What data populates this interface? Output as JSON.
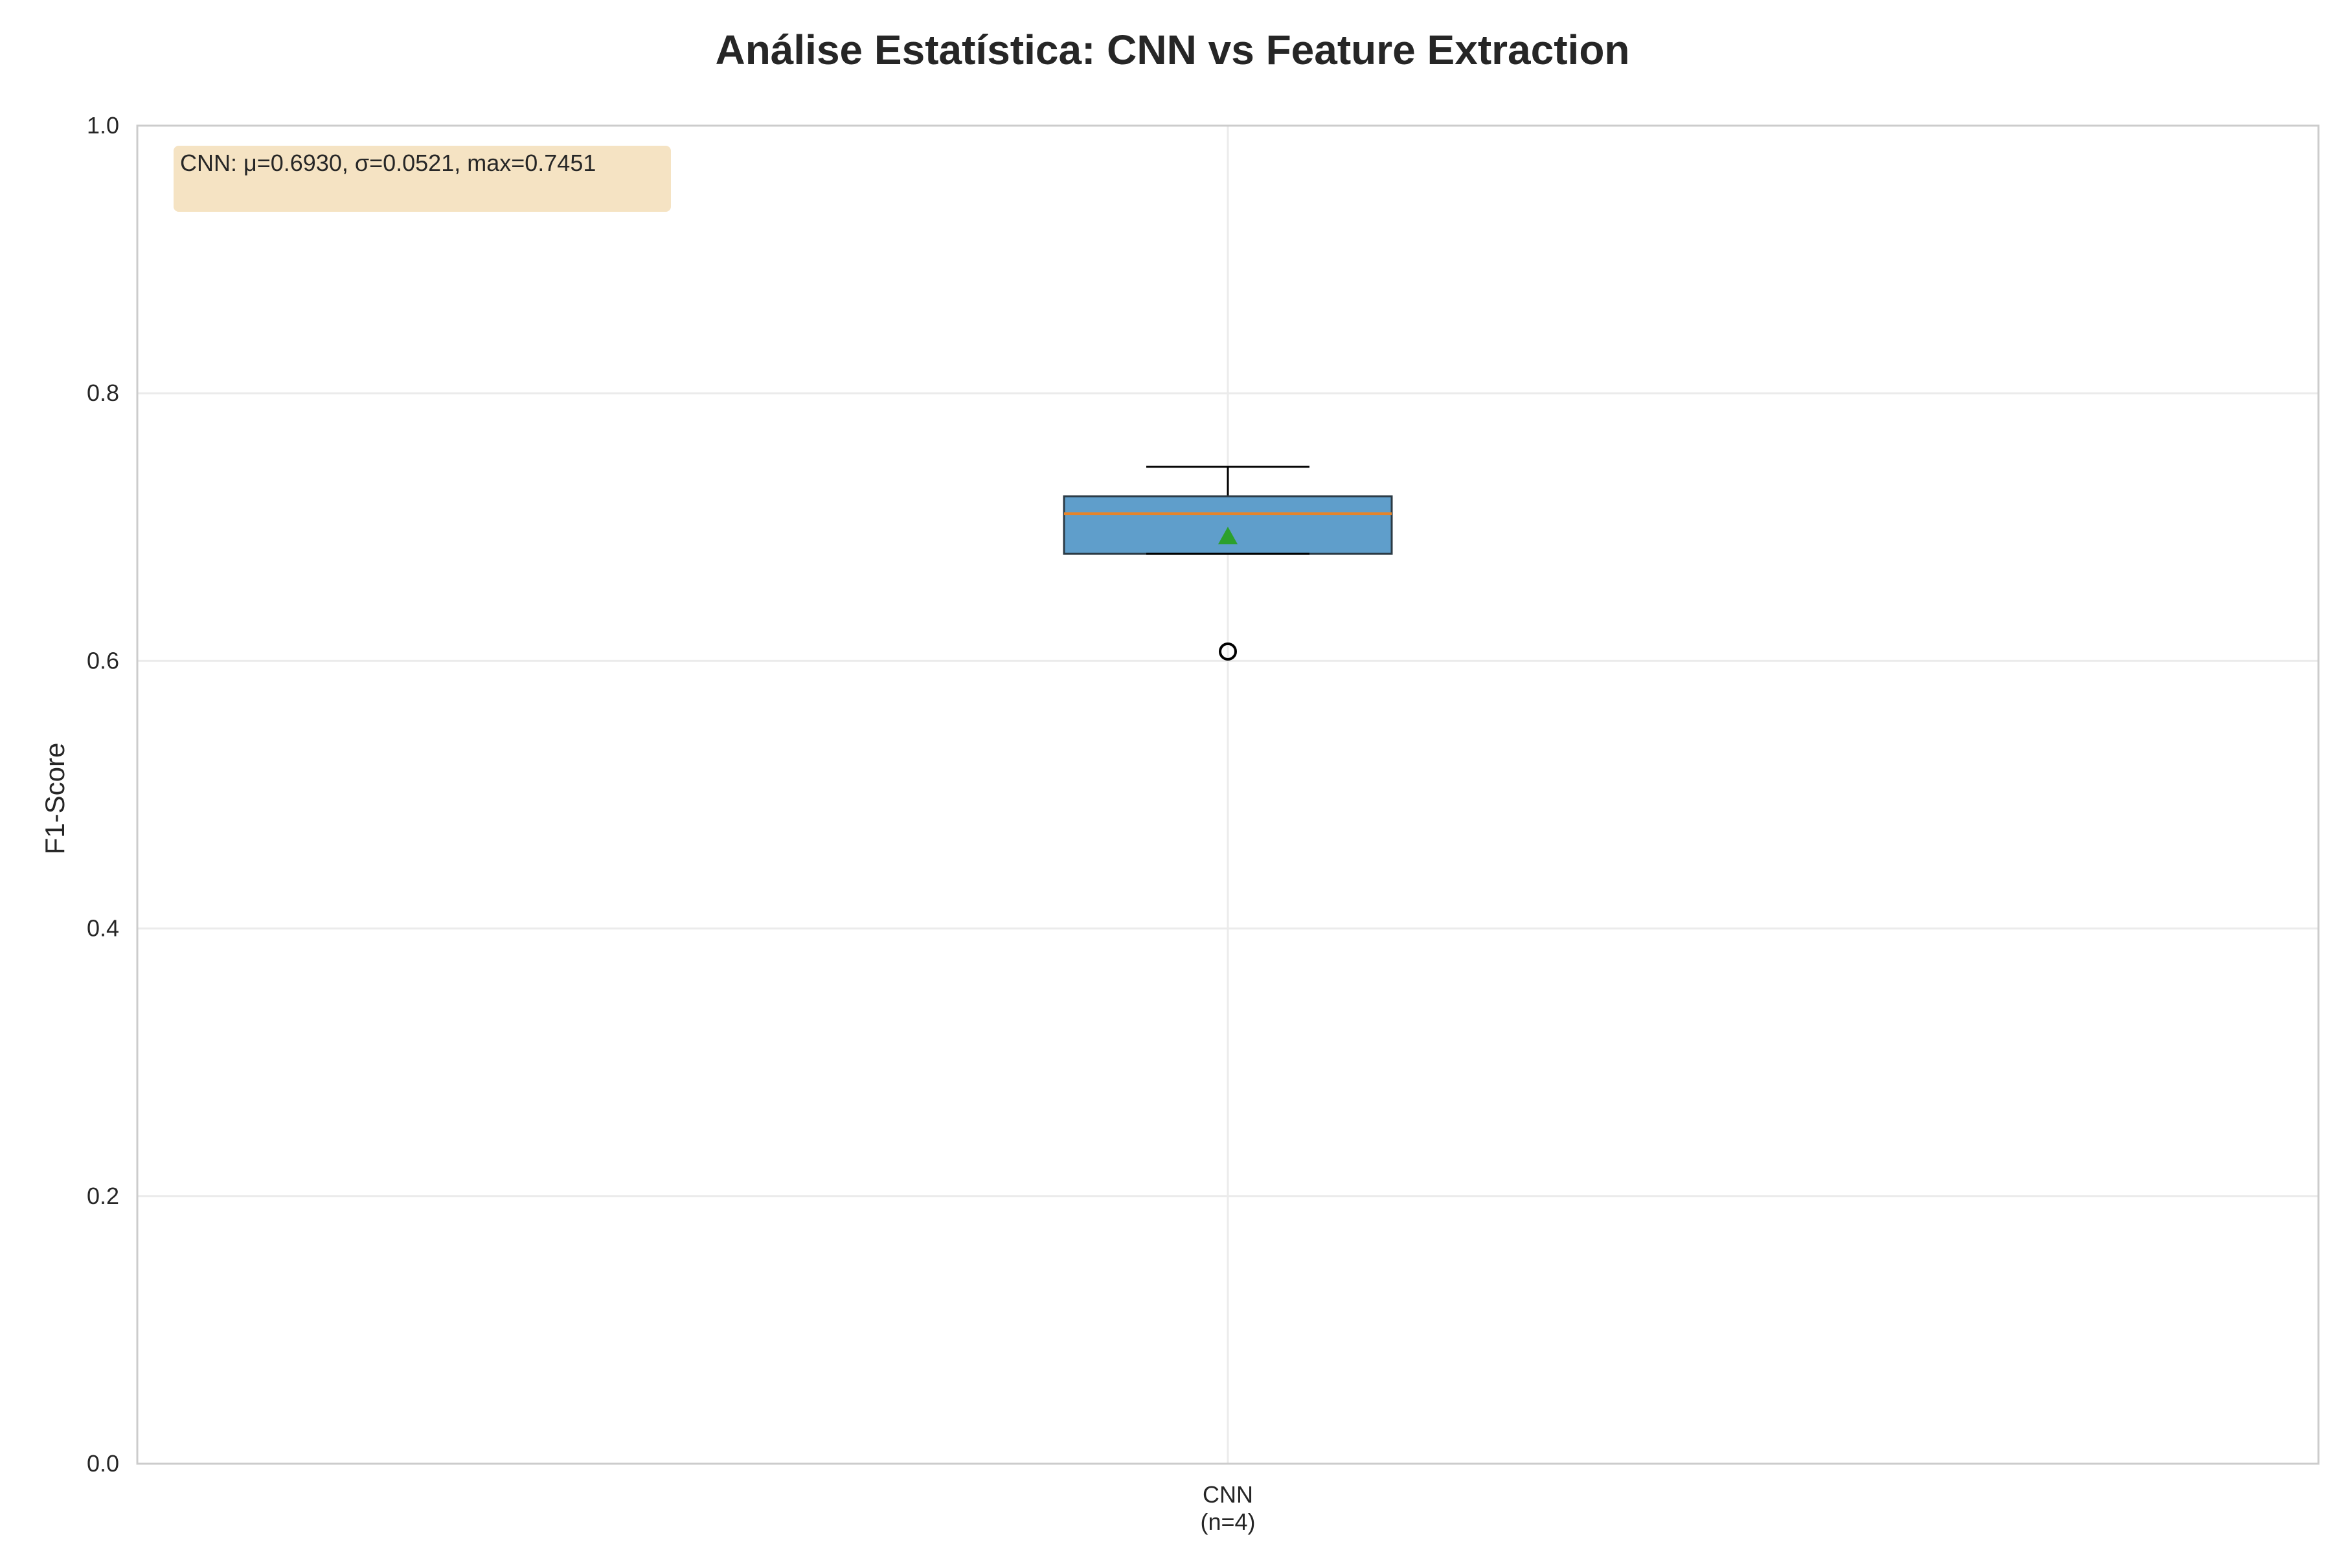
{
  "chart_data": {
    "type": "box",
    "title": "Análise Estatística: CNN vs Feature Extraction",
    "xlabel": "",
    "ylabel": "F1-Score",
    "ylim": [
      0,
      1
    ],
    "yticks": [
      0.0,
      0.2,
      0.4,
      0.6,
      0.8,
      1.0
    ],
    "ytick_labels": [
      "0.0",
      "0.2",
      "0.4",
      "0.6",
      "0.8",
      "1.0"
    ],
    "grid": true,
    "categories": [
      {
        "line1": "CNN",
        "line2": "(n=4)"
      }
    ],
    "boxes": [
      {
        "name": "CNN",
        "whisker_low": 0.68,
        "q1": 0.68,
        "median": 0.71,
        "q3": 0.723,
        "whisker_high": 0.7451,
        "mean": 0.693,
        "outliers": [
          0.607
        ]
      }
    ],
    "annotation": "CNN: μ=0.6930, σ=0.0521, max=0.7451",
    "colors": {
      "box_fill": "#5f9ecb",
      "box_edge": "#2b3a45",
      "median": "#e6842a",
      "mean_marker": "#2ca02c",
      "grid": "#ebebeb",
      "axes": "#cccccc",
      "annotation_bg": "#f5e3c3"
    }
  }
}
